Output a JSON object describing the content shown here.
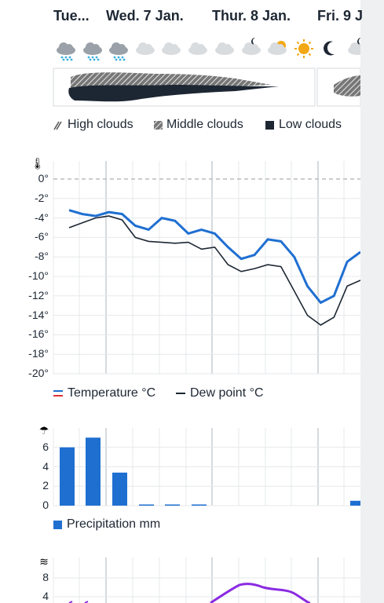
{
  "days": [
    "Tue...",
    "Wed. 7 Jan.",
    "Thur. 8 Jan.",
    "Fri. 9 J"
  ],
  "weather_icons": [
    "snow-cloud-icon",
    "snow-cloud-icon",
    "snow-cloud-icon",
    "cloud-icon",
    "cloud-icon",
    "cloud-icon",
    "cloud-icon",
    "moon-cloud-icon",
    "sun-cloud-icon",
    "sun-icon",
    "moon-icon",
    "moon-cloud-icon",
    "snow-cloud-icon"
  ],
  "cloud_legend": {
    "high": "High clouds",
    "middle": "Middle clouds",
    "low": "Low clouds"
  },
  "temperature": {
    "y_ticks": [
      "0°",
      "-2°",
      "-4°",
      "-6°",
      "-8°",
      "-10°",
      "-12°",
      "-14°",
      "-16°",
      "-18°",
      "-20°"
    ],
    "legend_temp": "Temperature °C",
    "legend_dew": "Dew point °C",
    "series_temp": [
      -3.2,
      -3.6,
      -3.8,
      -3.4,
      -3.6,
      -4.8,
      -5.2,
      -4.0,
      -4.3,
      -5.6,
      -5.2,
      -5.6,
      -7.0,
      -8.2,
      -7.8,
      -6.2,
      -6.4,
      -8.0,
      -11.0,
      -12.7,
      -12.0,
      -8.5,
      -7.5
    ],
    "series_dew": [
      -5.0,
      -4.5,
      -4.0,
      -3.8,
      -4.2,
      -6.0,
      -6.4,
      -6.5,
      -6.6,
      -6.5,
      -7.2,
      -7.0,
      -8.8,
      -9.5,
      -9.2,
      -8.8,
      -9.0,
      -11.5,
      -14.0,
      -15.0,
      -14.2,
      -11.0,
      -10.4
    ],
    "colors": {
      "temp": "#1f6fd1",
      "dew": "#1d2733"
    }
  },
  "precipitation": {
    "y_ticks": [
      "6",
      "4",
      "2",
      "0"
    ],
    "legend": "Precipitation mm",
    "values": [
      6.0,
      7.0,
      3.4,
      0.05,
      0.05,
      0.05,
      0,
      0,
      0,
      0,
      0,
      0.5
    ],
    "color": "#1f6fd1"
  },
  "wind": {
    "y_ticks": [
      "8",
      "4"
    ],
    "color": "#8a2be2"
  }
}
